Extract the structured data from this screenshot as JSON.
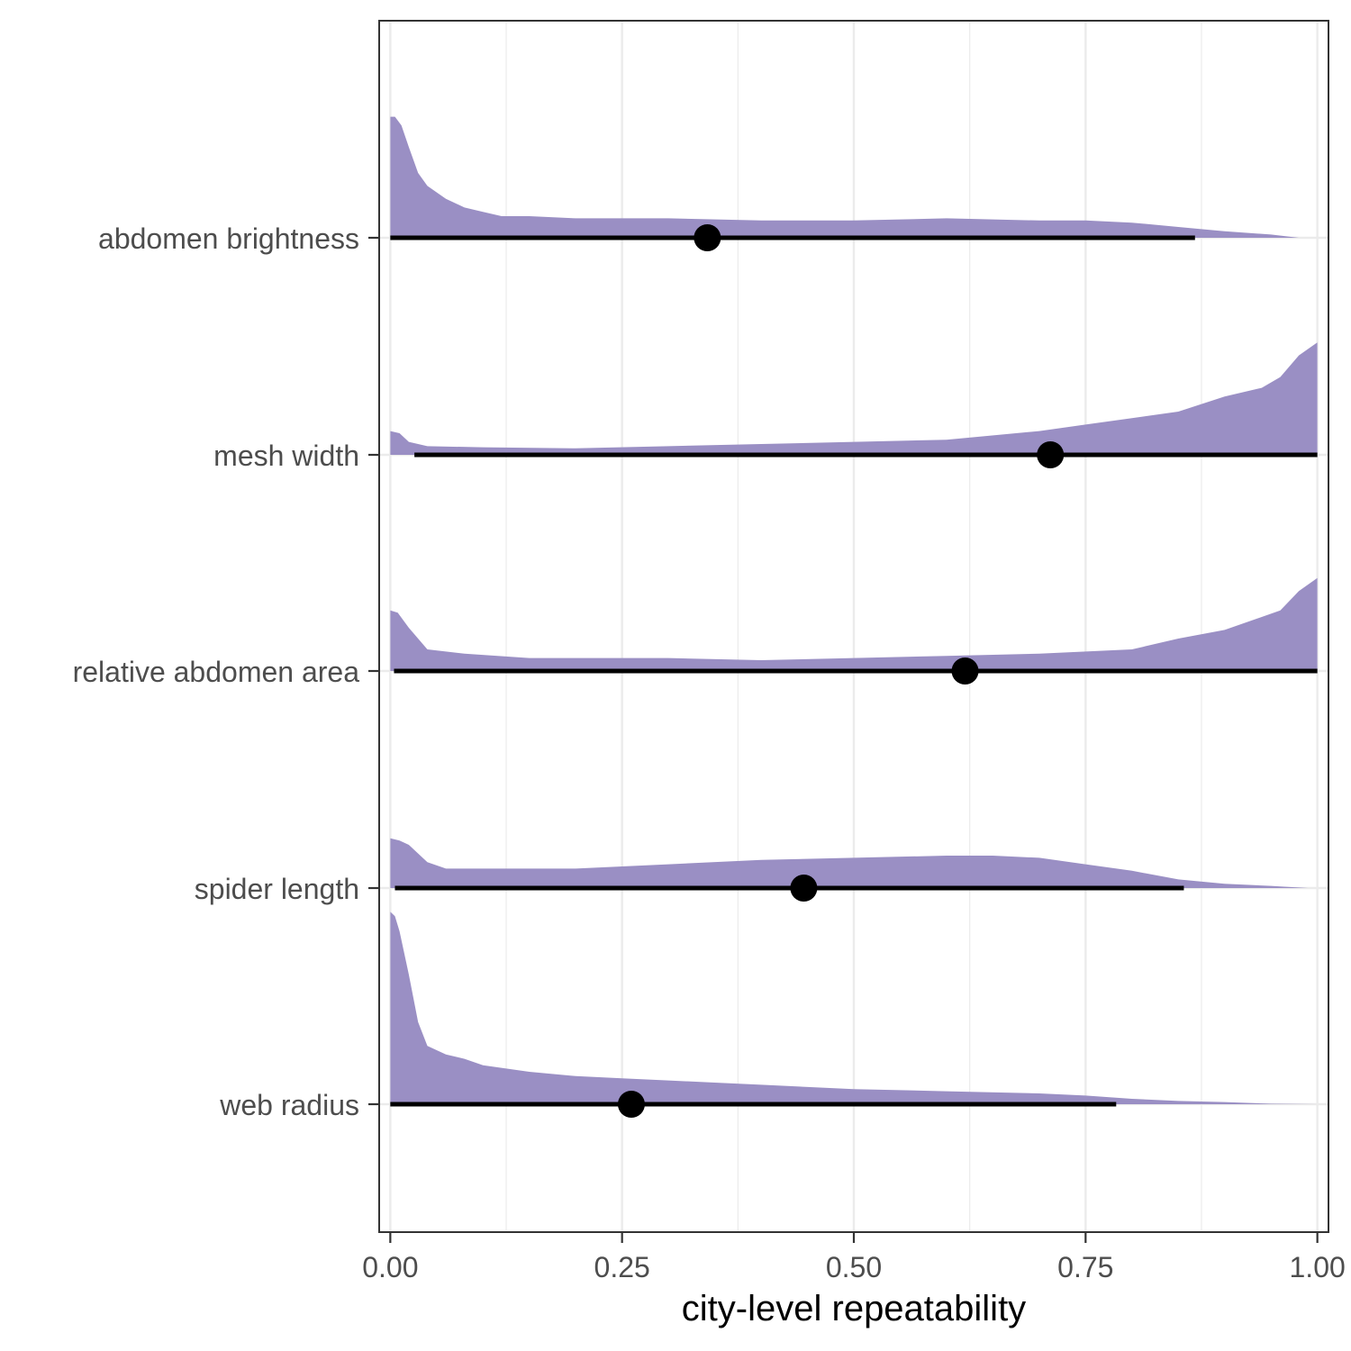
{
  "chart_data": {
    "type": "halfeye",
    "title": "",
    "xlabel": "city-level repeatability",
    "ylabel": "",
    "xlim": [
      -0.012,
      1.012
    ],
    "x_ticks": [
      0,
      0.25,
      0.5,
      0.75,
      1
    ],
    "x_tick_labels": [
      "0.00",
      "0.25",
      "0.50",
      "0.75",
      "1.00"
    ],
    "grid": true,
    "colors": {
      "density": "#9a8fc4",
      "interval": "#000000",
      "point": "#000000",
      "grid": "#ebebeb",
      "panel_border": "#333333"
    },
    "series": [
      {
        "category": "abdomen brightness",
        "point": 0.342,
        "interval": [
          0.0,
          0.868
        ],
        "density": [
          [
            0.0,
            0.56
          ],
          [
            0.005,
            0.56
          ],
          [
            0.012,
            0.52
          ],
          [
            0.02,
            0.42
          ],
          [
            0.03,
            0.3
          ],
          [
            0.04,
            0.24
          ],
          [
            0.06,
            0.18
          ],
          [
            0.08,
            0.14
          ],
          [
            0.1,
            0.12
          ],
          [
            0.12,
            0.1
          ],
          [
            0.15,
            0.1
          ],
          [
            0.2,
            0.09
          ],
          [
            0.3,
            0.09
          ],
          [
            0.4,
            0.08
          ],
          [
            0.5,
            0.08
          ],
          [
            0.6,
            0.09
          ],
          [
            0.7,
            0.08
          ],
          [
            0.75,
            0.08
          ],
          [
            0.8,
            0.07
          ],
          [
            0.85,
            0.05
          ],
          [
            0.9,
            0.03
          ],
          [
            0.95,
            0.015
          ],
          [
            0.98,
            0.0
          ]
        ]
      },
      {
        "category": "mesh width",
        "point": 0.712,
        "interval": [
          0.026,
          1.0
        ],
        "density": [
          [
            0.0,
            0.11
          ],
          [
            0.01,
            0.1
          ],
          [
            0.02,
            0.06
          ],
          [
            0.04,
            0.04
          ],
          [
            0.1,
            0.035
          ],
          [
            0.2,
            0.03
          ],
          [
            0.3,
            0.04
          ],
          [
            0.4,
            0.05
          ],
          [
            0.5,
            0.06
          ],
          [
            0.6,
            0.07
          ],
          [
            0.7,
            0.11
          ],
          [
            0.75,
            0.14
          ],
          [
            0.8,
            0.17
          ],
          [
            0.85,
            0.2
          ],
          [
            0.9,
            0.27
          ],
          [
            0.94,
            0.31
          ],
          [
            0.96,
            0.36
          ],
          [
            0.98,
            0.46
          ],
          [
            1.0,
            0.52
          ]
        ]
      },
      {
        "category": "relative abdomen area",
        "point": 0.62,
        "interval": [
          0.004,
          1.0
        ],
        "density": [
          [
            0.0,
            0.28
          ],
          [
            0.008,
            0.27
          ],
          [
            0.02,
            0.2
          ],
          [
            0.04,
            0.1
          ],
          [
            0.08,
            0.08
          ],
          [
            0.15,
            0.06
          ],
          [
            0.3,
            0.06
          ],
          [
            0.4,
            0.05
          ],
          [
            0.5,
            0.06
          ],
          [
            0.6,
            0.07
          ],
          [
            0.7,
            0.08
          ],
          [
            0.8,
            0.1
          ],
          [
            0.85,
            0.15
          ],
          [
            0.9,
            0.19
          ],
          [
            0.94,
            0.25
          ],
          [
            0.96,
            0.28
          ],
          [
            0.98,
            0.37
          ],
          [
            1.0,
            0.43
          ]
        ]
      },
      {
        "category": "spider length",
        "point": 0.446,
        "interval": [
          0.005,
          0.856
        ],
        "density": [
          [
            0.0,
            0.23
          ],
          [
            0.01,
            0.22
          ],
          [
            0.02,
            0.2
          ],
          [
            0.04,
            0.12
          ],
          [
            0.06,
            0.09
          ],
          [
            0.1,
            0.09
          ],
          [
            0.2,
            0.09
          ],
          [
            0.3,
            0.11
          ],
          [
            0.4,
            0.13
          ],
          [
            0.5,
            0.14
          ],
          [
            0.6,
            0.15
          ],
          [
            0.65,
            0.15
          ],
          [
            0.7,
            0.14
          ],
          [
            0.75,
            0.11
          ],
          [
            0.8,
            0.08
          ],
          [
            0.85,
            0.04
          ],
          [
            0.9,
            0.02
          ],
          [
            0.95,
            0.01
          ],
          [
            0.99,
            0.0
          ]
        ]
      },
      {
        "category": "web radius",
        "point": 0.26,
        "interval": [
          0.0,
          0.783
        ],
        "density": [
          [
            0.0,
            0.89
          ],
          [
            0.005,
            0.87
          ],
          [
            0.01,
            0.8
          ],
          [
            0.02,
            0.6
          ],
          [
            0.03,
            0.38
          ],
          [
            0.04,
            0.27
          ],
          [
            0.06,
            0.23
          ],
          [
            0.08,
            0.21
          ],
          [
            0.1,
            0.18
          ],
          [
            0.15,
            0.15
          ],
          [
            0.2,
            0.13
          ],
          [
            0.25,
            0.12
          ],
          [
            0.3,
            0.11
          ],
          [
            0.35,
            0.1
          ],
          [
            0.4,
            0.09
          ],
          [
            0.5,
            0.07
          ],
          [
            0.6,
            0.06
          ],
          [
            0.7,
            0.05
          ],
          [
            0.75,
            0.04
          ],
          [
            0.8,
            0.025
          ],
          [
            0.85,
            0.015
          ],
          [
            0.9,
            0.01
          ],
          [
            0.95,
            0.002
          ],
          [
            1.0,
            0.0
          ]
        ]
      }
    ]
  }
}
